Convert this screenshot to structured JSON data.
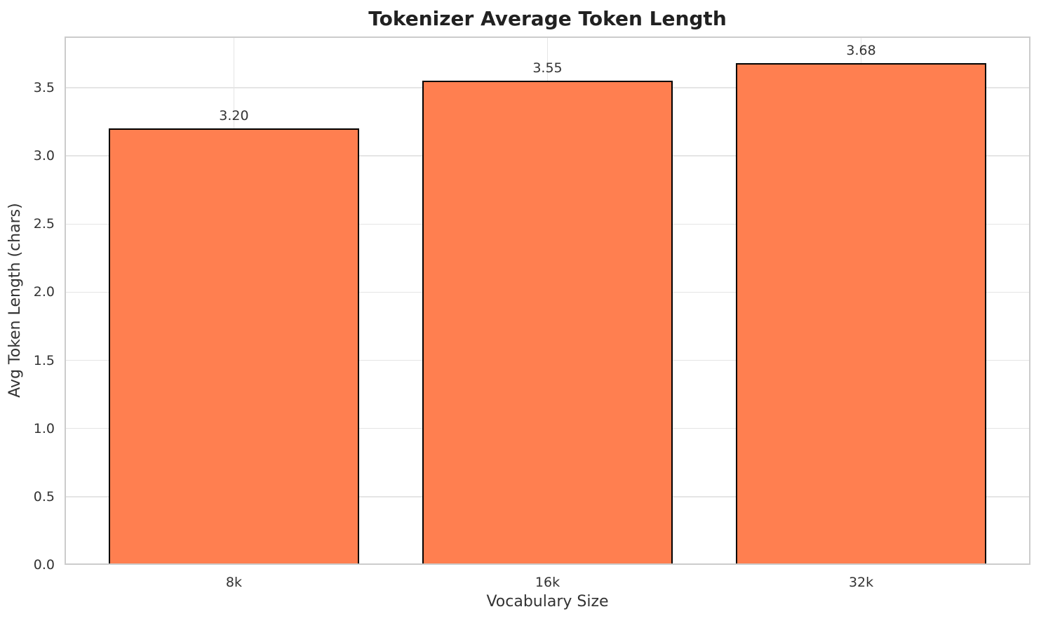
{
  "chart_data": {
    "type": "bar",
    "title": "Tokenizer Average Token Length",
    "xlabel": "Vocabulary Size",
    "ylabel": "Avg Token Length (chars)",
    "categories": [
      "8k",
      "16k",
      "32k"
    ],
    "values": [
      3.2,
      3.55,
      3.68
    ],
    "value_labels": [
      "3.20",
      "3.55",
      "3.68"
    ],
    "yticks": [
      0.0,
      0.5,
      1.0,
      1.5,
      2.0,
      2.5,
      3.0,
      3.5
    ],
    "ytick_labels": [
      "0.0",
      "0.5",
      "1.0",
      "1.5",
      "2.0",
      "2.5",
      "3.0",
      "3.5"
    ],
    "ylim": [
      0,
      3.876
    ],
    "xlim": [
      -0.54,
      2.54
    ],
    "bar_width": 0.8,
    "grid": "both",
    "legend_position": "none",
    "colors": {
      "bar_fill": "#FF7F50",
      "bar_edge": "#000000",
      "grid": "#e5e5e5",
      "spine": "#cccccc",
      "title_text": "#212121",
      "tick_text": "#333333",
      "label_text": "#333333"
    }
  }
}
